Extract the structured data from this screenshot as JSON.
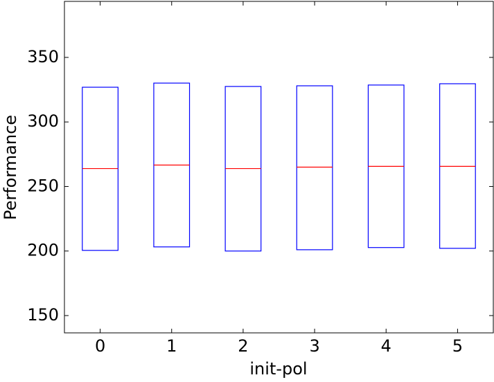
{
  "chart_data": {
    "type": "box",
    "x_label": "init-pol",
    "y_label": "Performance",
    "categories": [
      "0",
      "1",
      "2",
      "3",
      "4",
      "5"
    ],
    "q1": [
      200.5,
      203.2,
      200,
      201,
      202.7,
      202.1
    ],
    "median": [
      263.9,
      266.6,
      263.9,
      265,
      265.6,
      265.6
    ],
    "q3": [
      326.9,
      330.1,
      327.5,
      328,
      328.6,
      329.6
    ],
    "box_color": "#0000ff",
    "median_color": "#ff0000",
    "ylim": [
      136.6,
      393.4
    ],
    "yticks": [
      150,
      200,
      250,
      300,
      350
    ]
  }
}
